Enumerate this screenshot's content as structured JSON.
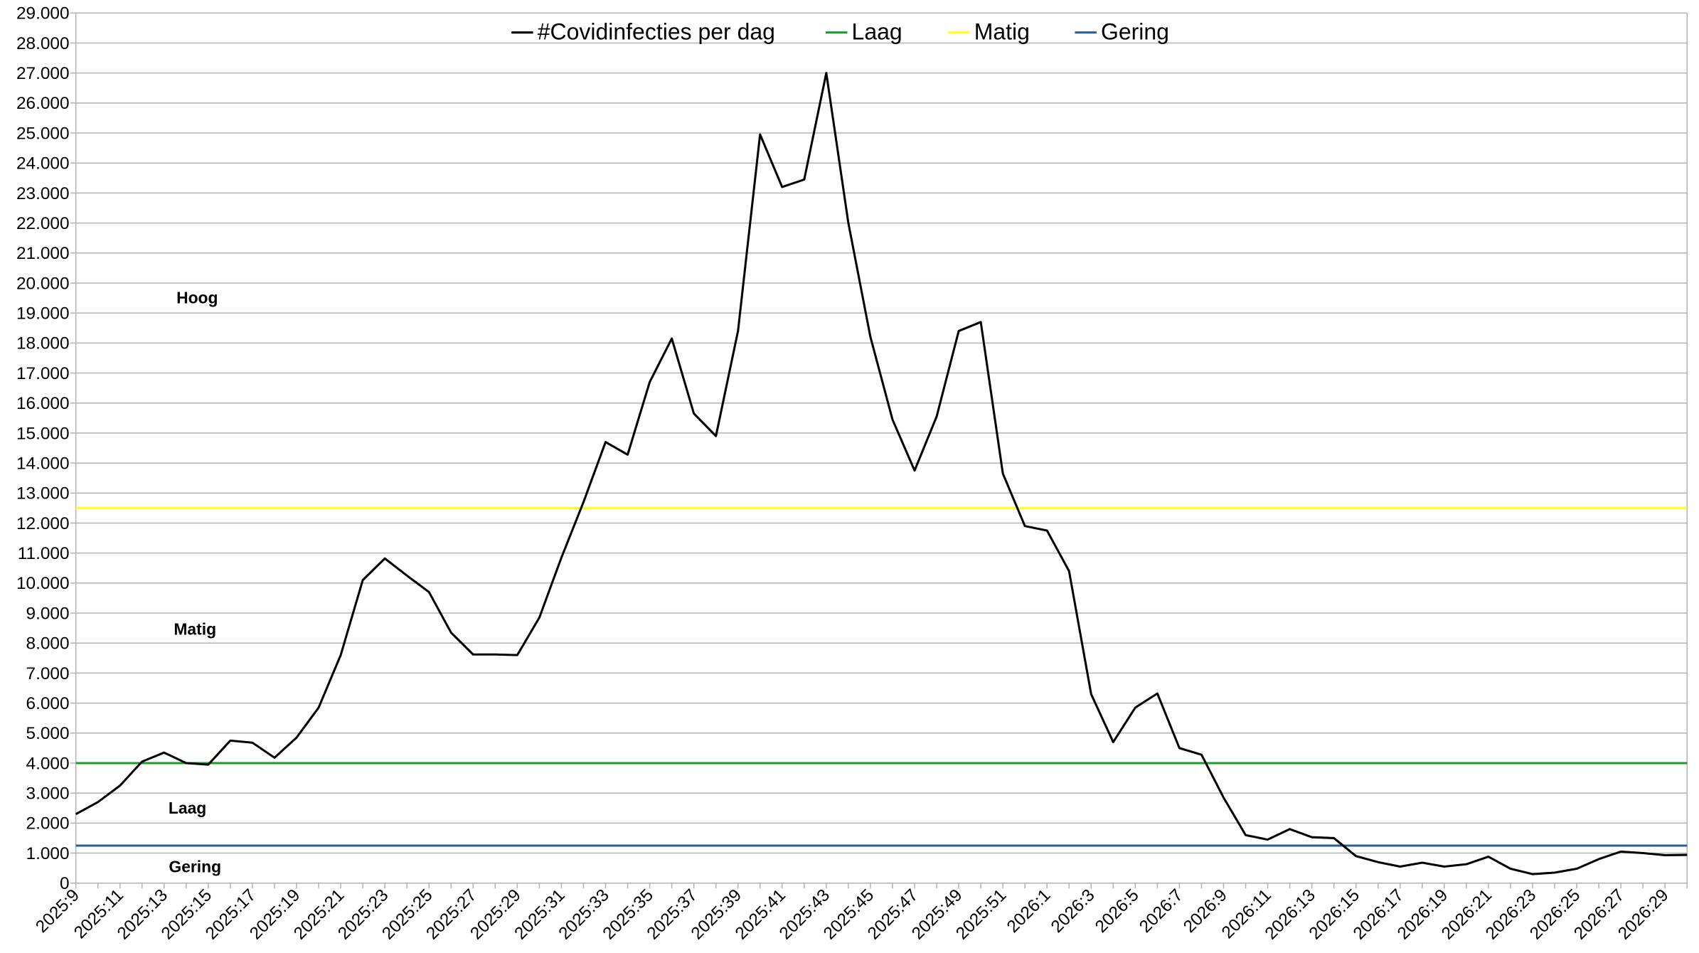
{
  "chart_data": {
    "type": "line",
    "categories": [
      "2025:9",
      null,
      "2025:11",
      null,
      "2025:13",
      null,
      "2025:15",
      null,
      "2025:17",
      null,
      "2025:19",
      null,
      "2025:21",
      null,
      "2025:23",
      null,
      "2025:25",
      null,
      "2025:27",
      null,
      "2025:29",
      null,
      "2025:31",
      null,
      "2025:33",
      null,
      "2025:35",
      null,
      "2025:37",
      null,
      "2025:39",
      null,
      "2025:41",
      null,
      "2025:43",
      null,
      "2025:45",
      null,
      "2025:47",
      null,
      "2025:49",
      null,
      "2025:51",
      null,
      "2026:1",
      null,
      "2026:3",
      null,
      "2026:5",
      null,
      "2026:7",
      null,
      "2026:9",
      null,
      "2026:11",
      null,
      "2026:13",
      null,
      "2026:15",
      null,
      "2026:17",
      null,
      "2026:19",
      null,
      "2026:21",
      null,
      "2026:23",
      null,
      "2026:25",
      null,
      "2026:27",
      null,
      "2026:29",
      null
    ],
    "series": [
      {
        "name": "#Covidinfecties per dag",
        "color": "#000000",
        "values": [
          2300,
          2700,
          3250,
          4050,
          4350,
          4000,
          3950,
          4750,
          4680,
          4180,
          4850,
          5850,
          7600,
          10100,
          10820,
          10250,
          9700,
          8350,
          7620,
          7620,
          7600,
          8850,
          10850,
          12700,
          14700,
          14280,
          16700,
          18150,
          15650,
          14900,
          18400,
          24950,
          23200,
          23450,
          27000,
          22000,
          18200,
          15450,
          13750,
          15550,
          18400,
          18700,
          13650,
          11900,
          11750,
          10400,
          6300,
          4700,
          5850,
          6320,
          4500,
          4280,
          2850,
          1600,
          1450,
          1800,
          1530,
          1500,
          900,
          700,
          550,
          680,
          550,
          630,
          880,
          480,
          300,
          350,
          480,
          800,
          1050,
          1000,
          930,
          940
        ]
      }
    ],
    "reference_lines": [
      {
        "name": "Laag",
        "color": "#1a9e2a",
        "value": 4000
      },
      {
        "name": "Matig",
        "color": "#ffff1a",
        "value": 12500
      },
      {
        "name": "Gering",
        "color": "#2a6099",
        "value": 1250
      }
    ],
    "annotations": [
      "Hoog",
      "Matig",
      "Laag",
      "Gering"
    ],
    "ylim": [
      0,
      29000
    ],
    "yticks": [
      0,
      {
        "value": 1000,
        "label": "1.000"
      },
      {
        "value": 2000,
        "label": "2.000"
      },
      {
        "value": 3000,
        "label": "3.000"
      },
      {
        "value": 4000,
        "label": "4.000"
      },
      {
        "value": 5000,
        "label": "5.000"
      },
      {
        "value": 6000,
        "label": "6.000"
      },
      {
        "value": 7000,
        "label": "7.000"
      },
      {
        "value": 8000,
        "label": "8.000"
      },
      {
        "value": 9000,
        "label": "9.000"
      },
      {
        "value": 10000,
        "label": "10.000"
      },
      {
        "value": 11000,
        "label": "11.000"
      },
      {
        "value": 12000,
        "label": "12.000"
      },
      {
        "value": 13000,
        "label": "13.000"
      },
      {
        "value": 14000,
        "label": "14.000"
      },
      {
        "value": 15000,
        "label": "15.000"
      },
      {
        "value": 16000,
        "label": "16.000"
      },
      {
        "value": 17000,
        "label": "17.000"
      },
      {
        "value": 18000,
        "label": "18.000"
      },
      {
        "value": 19000,
        "label": "19.000"
      },
      {
        "value": 20000,
        "label": "20.000"
      },
      {
        "value": 21000,
        "label": "21.000"
      },
      {
        "value": 22000,
        "label": "22.000"
      },
      {
        "value": 23000,
        "label": "23.000"
      },
      {
        "value": 24000,
        "label": "24.000"
      },
      {
        "value": 25000,
        "label": "25.000"
      },
      {
        "value": 26000,
        "label": "26.000"
      },
      {
        "value": 27000,
        "label": "27.000"
      },
      {
        "value": 28000,
        "label": "28.000"
      },
      {
        "value": 29000,
        "label": "29.000"
      }
    ],
    "grid": true
  }
}
